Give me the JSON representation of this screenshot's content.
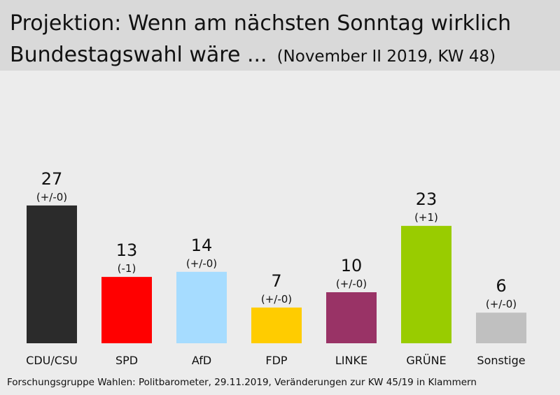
{
  "title": {
    "line1": "Projektion: Wenn am nächsten Sonntag wirklich",
    "line2": "Bundestagswahl wäre ...",
    "subtitle": "(November II 2019, KW 48)"
  },
  "chart_data": {
    "type": "bar",
    "title": "Projektion: Wenn am nächsten Sonntag wirklich Bundestagswahl wäre ...",
    "subtitle": "(November II 2019, KW 48)",
    "categories": [
      "CDU/CSU",
      "SPD",
      "AfD",
      "FDP",
      "LINKE",
      "GRÜNE",
      "Sonstige"
    ],
    "values": [
      27,
      13,
      14,
      7,
      10,
      23,
      6
    ],
    "changes": [
      "(+/-0)",
      "(-1)",
      "(+/-0)",
      "(+/-0)",
      "(+/-0)",
      "(+1)",
      "(+/-0)"
    ],
    "colors": [
      "#2b2b2b",
      "#ff0000",
      "#a6dcff",
      "#ffcc00",
      "#993366",
      "#99cc00",
      "#c0c0c0"
    ],
    "ylim": [
      0,
      30
    ],
    "grid": false,
    "legend": "none"
  },
  "footer": "Forschungsgruppe Wahlen: Politbarometer, 29.11.2019, Veränderungen zur KW 45/19 in Klammern"
}
